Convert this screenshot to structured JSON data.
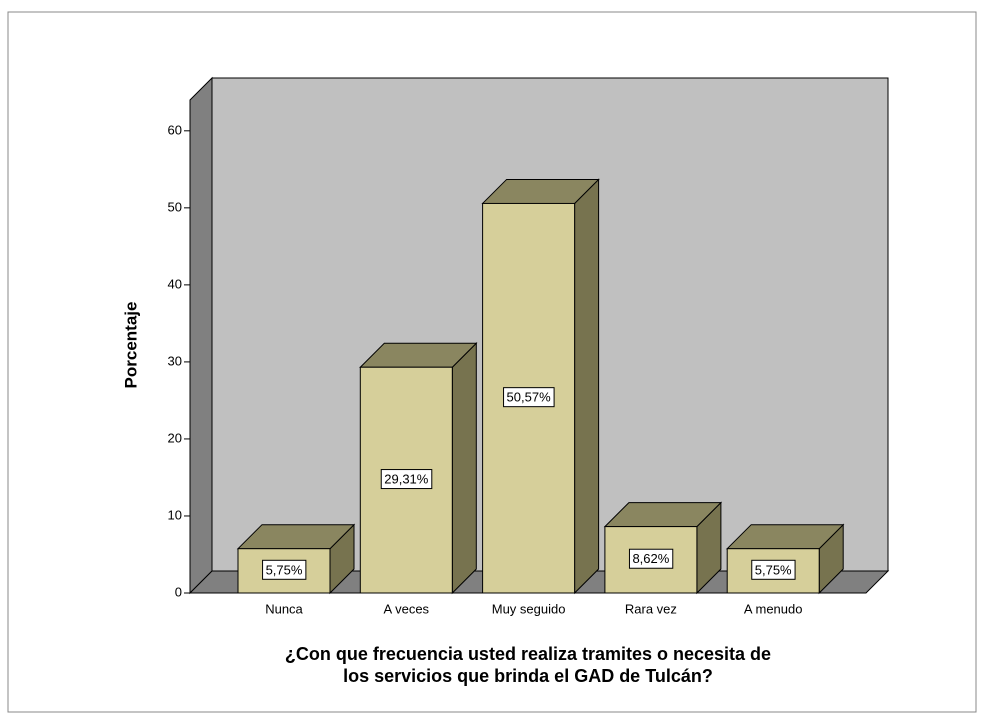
{
  "chart_data": {
    "type": "bar3d",
    "ylabel": "Porcentaje",
    "xlabel": [
      "¿Con que frecuencia usted realiza tramites o necesita de",
      "los servicios que brinda el GAD de Tulcán?"
    ],
    "categories": [
      "Nunca",
      "A veces",
      "Muy seguido",
      "Rara vez",
      "A menudo"
    ],
    "values": [
      5.75,
      29.31,
      50.57,
      8.62,
      5.75
    ],
    "value_labels": [
      "5,75%",
      "29,31%",
      "50,57%",
      "8,62%",
      "5,75%"
    ],
    "color": "#d6cf9a",
    "ylim": [
      0,
      64
    ],
    "yticks": [
      0,
      10,
      20,
      30,
      40,
      50,
      60
    ]
  }
}
